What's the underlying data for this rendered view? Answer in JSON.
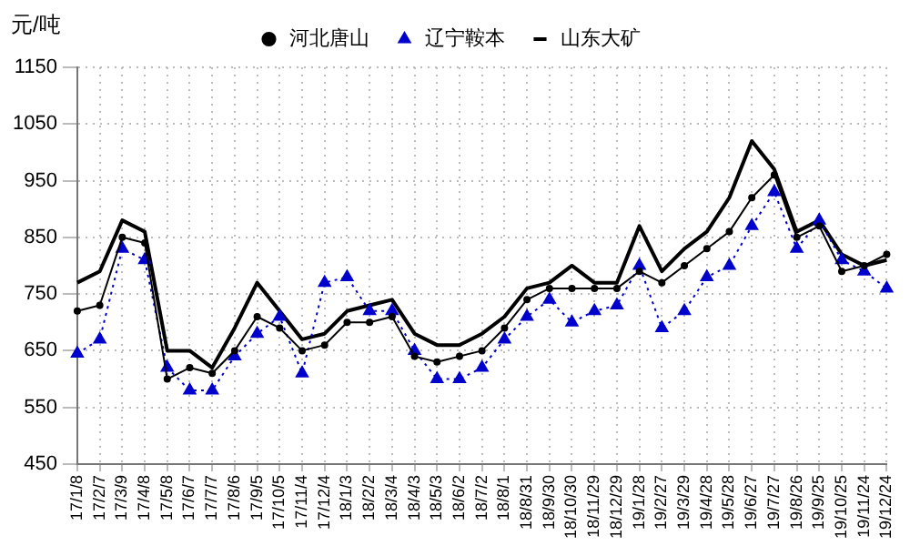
{
  "chart_data": {
    "type": "line",
    "ylabel": "元/吨",
    "categories": [
      "17/1/8",
      "17/2/7",
      "17/3/9",
      "17/4/8",
      "17/5/8",
      "17/6/7",
      "17/7/7",
      "17/8/6",
      "17/9/5",
      "17/10/5",
      "17/11/4",
      "17/12/4",
      "18/1/3",
      "18/2/2",
      "18/3/4",
      "18/4/3",
      "18/5/3",
      "18/6/2",
      "18/7/2",
      "18/8/1",
      "18/8/31",
      "18/9/30",
      "18/10/30",
      "18/11/29",
      "18/12/29",
      "19/1/28",
      "19/2/27",
      "19/3/29",
      "19/4/28",
      "19/5/28",
      "19/6/27",
      "19/7/27",
      "19/8/26",
      "19/9/25",
      "19/10/25",
      "19/11/24",
      "19/12/24"
    ],
    "series": [
      {
        "name": "河北唐山",
        "color": "#000000",
        "marker": "circle",
        "line_style": "solid",
        "values": [
          720,
          730,
          850,
          840,
          600,
          620,
          610,
          650,
          710,
          690,
          650,
          660,
          700,
          700,
          710,
          640,
          630,
          640,
          650,
          690,
          740,
          760,
          760,
          760,
          760,
          790,
          770,
          800,
          830,
          860,
          920,
          960,
          850,
          870,
          790,
          800,
          820
        ]
      },
      {
        "name": "辽宁鞍本",
        "color": "#0000cc",
        "marker": "triangle",
        "line_style": "dotted",
        "values": [
          645,
          670,
          830,
          810,
          620,
          580,
          580,
          640,
          680,
          710,
          610,
          770,
          780,
          720,
          720,
          650,
          600,
          600,
          620,
          670,
          710,
          740,
          700,
          720,
          730,
          800,
          690,
          720,
          780,
          800,
          870,
          930,
          830,
          880,
          810,
          790,
          760
        ]
      },
      {
        "name": "山东大矿",
        "color": "#000000",
        "marker": "none",
        "line_style": "solid",
        "values": [
          770,
          790,
          880,
          860,
          650,
          650,
          620,
          690,
          770,
          720,
          670,
          680,
          720,
          730,
          740,
          680,
          660,
          660,
          680,
          710,
          760,
          770,
          800,
          770,
          770,
          870,
          790,
          830,
          860,
          920,
          1020,
          970,
          860,
          880,
          820,
          800,
          810
        ]
      }
    ],
    "ylim": [
      450,
      1150
    ],
    "yticks": [
      450,
      550,
      650,
      750,
      850,
      950,
      1050,
      1150
    ],
    "grid": true,
    "legend": "top"
  }
}
